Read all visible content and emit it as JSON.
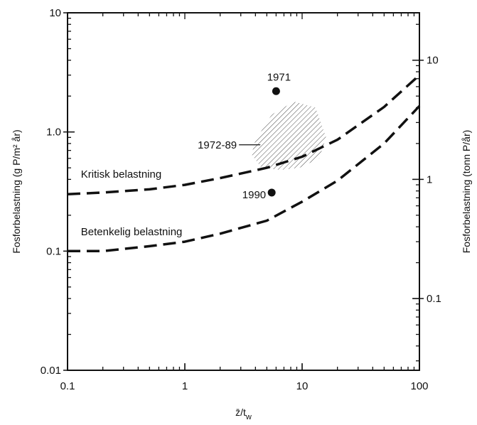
{
  "chart_data": {
    "type": "scatter",
    "x_scale": "log",
    "y_scale": "log",
    "xlim": [
      0.1,
      100
    ],
    "ylim": [
      0.01,
      10
    ],
    "right_ylim": [
      0.025,
      25
    ],
    "grid": false,
    "x_ticks": [
      "0.1",
      "1",
      "10",
      "100"
    ],
    "x_tick_values": [
      0.1,
      1,
      10,
      100
    ],
    "y_ticks": [
      "0.01",
      "0.1",
      "1.0",
      "10"
    ],
    "y_tick_values": [
      0.01,
      0.1,
      1.0,
      10
    ],
    "right_y_ticks": [
      "0.1",
      "1",
      "10"
    ],
    "right_y_tick_values": [
      0.1,
      1,
      10
    ],
    "xlabel_main": "z̄/t",
    "xlabel_sub": "w",
    "ylabel_left": "Fosforbelastning (g P/m² år)",
    "ylabel_right": "Fosforbelastning (tonn P/år)",
    "series": [
      {
        "name": "Kritisk belastning",
        "style": "dashed",
        "x": [
          0.1,
          0.2,
          0.5,
          1,
          2,
          5,
          10,
          20,
          50,
          100
        ],
        "y": [
          0.3,
          0.31,
          0.33,
          0.36,
          0.41,
          0.5,
          0.62,
          0.86,
          1.62,
          3.0
        ]
      },
      {
        "name": "Betenkelig belastning",
        "style": "dashed",
        "x": [
          0.1,
          0.2,
          0.5,
          1,
          2,
          5,
          10,
          20,
          50,
          100
        ],
        "y": [
          0.1,
          0.1,
          0.11,
          0.12,
          0.14,
          0.18,
          0.26,
          0.39,
          0.8,
          1.65
        ]
      }
    ],
    "points": [
      {
        "label": "1971",
        "x": 6.0,
        "y": 2.2
      },
      {
        "label": "1990",
        "x": 5.5,
        "y": 0.31
      }
    ],
    "region": {
      "label": "1972-89",
      "x": [
        4.0,
        5.5,
        8.5,
        13,
        16,
        14,
        9.5,
        6.5,
        4.5,
        3.7
      ],
      "y": [
        0.85,
        1.4,
        1.8,
        1.6,
        0.9,
        0.6,
        0.5,
        0.48,
        0.5,
        0.65
      ]
    },
    "region_label_point": {
      "x": 4.4,
      "y": 0.78
    },
    "annotations": [
      {
        "text": "Kritisk belastning",
        "x": 0.13,
        "y": 0.38
      },
      {
        "text": "Betenkelig belastning",
        "x": 0.13,
        "y": 0.125
      }
    ]
  }
}
